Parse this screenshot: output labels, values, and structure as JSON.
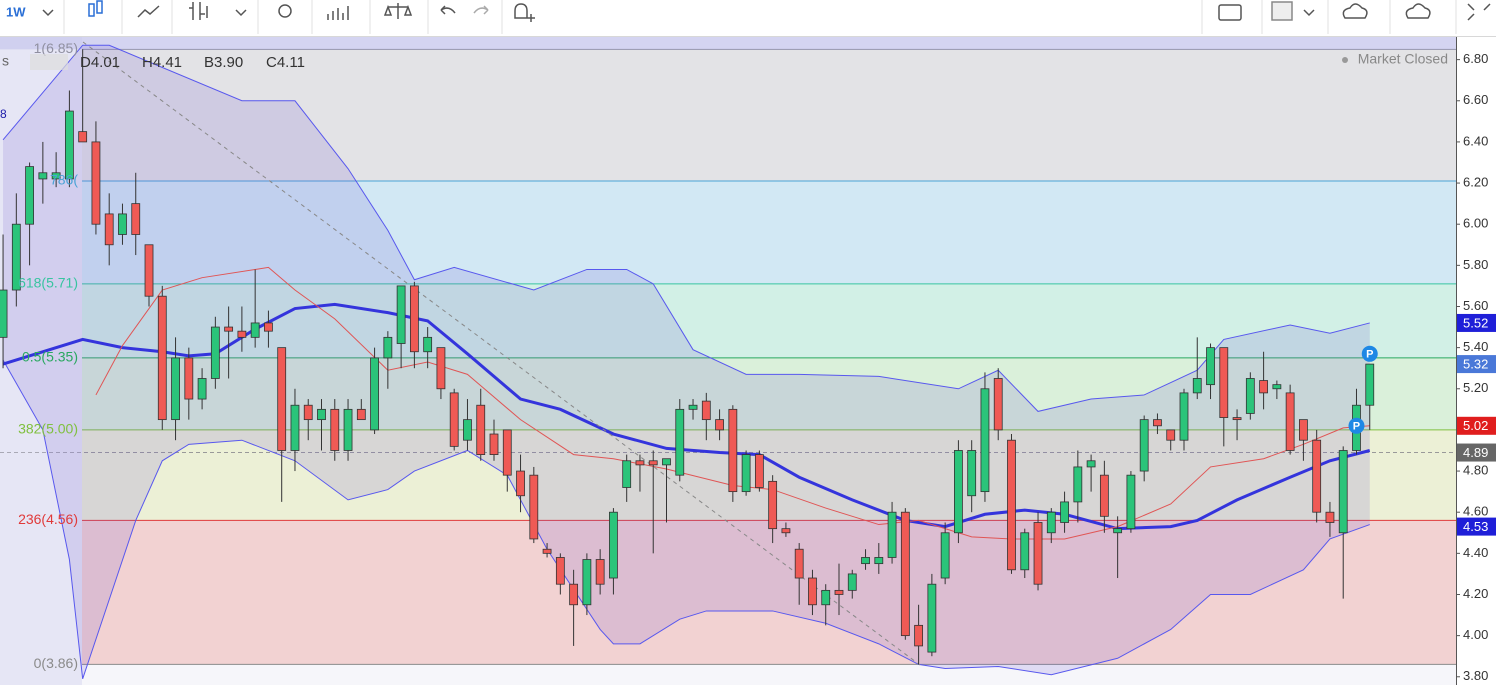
{
  "toolbar": {
    "interval": "1W"
  },
  "header": {
    "fragment_left": "s",
    "fragment_value": "8",
    "open": "D4.01",
    "high": "H4.41",
    "low": "B3.90",
    "close": "C4.11",
    "status": "Market Closed"
  },
  "chart_data": {
    "type": "candlestick",
    "ylim": [
      3.76,
      6.91
    ],
    "xlim": [
      -0.23,
      109.5
    ],
    "yticks": [
      {
        "value": 3.8,
        "label": "3.80"
      },
      {
        "value": 4,
        "label": "4.00"
      },
      {
        "value": 4.2,
        "label": "4.20"
      },
      {
        "value": 4.4,
        "label": "4.40"
      },
      {
        "value": 4.6,
        "label": "4.60"
      },
      {
        "value": 4.8,
        "label": "4.80"
      },
      {
        "value": 5,
        "label": "5.00"
      },
      {
        "value": 5.2,
        "label": "5.20"
      },
      {
        "value": 5.4,
        "label": "5.40"
      },
      {
        "value": 5.6,
        "label": "5.60"
      },
      {
        "value": 5.8,
        "label": "5.80"
      },
      {
        "value": 6,
        "label": "6.00"
      },
      {
        "value": 6.2,
        "label": "6.20"
      },
      {
        "value": 6.4,
        "label": "6.40"
      },
      {
        "value": 6.6,
        "label": "6.60"
      },
      {
        "value": 6.8,
        "label": "6.80"
      }
    ],
    "up_color": "#2bc47a",
    "down_color": "#ef5a55",
    "candles": [
      [
        5.45,
        5.95,
        5.3,
        5.68
      ],
      [
        5.68,
        6.15,
        5.6,
        6.0
      ],
      [
        6.0,
        6.3,
        5.8,
        6.28
      ],
      [
        6.22,
        6.4,
        6.1,
        6.25
      ],
      [
        6.22,
        6.35,
        6.18,
        6.25
      ],
      [
        6.22,
        6.65,
        6.18,
        6.55
      ],
      [
        6.45,
        6.85,
        6.4,
        6.4
      ],
      [
        6.4,
        6.5,
        5.95,
        6.0
      ],
      [
        6.05,
        6.15,
        5.8,
        5.9
      ],
      [
        5.95,
        6.1,
        5.9,
        6.05
      ],
      [
        6.1,
        6.25,
        5.85,
        5.95
      ],
      [
        5.9,
        5.9,
        5.6,
        5.65
      ],
      [
        5.65,
        5.7,
        5.0,
        5.05
      ],
      [
        5.05,
        5.45,
        4.95,
        5.35
      ],
      [
        5.35,
        5.4,
        5.05,
        5.15
      ],
      [
        5.15,
        5.3,
        5.1,
        5.25
      ],
      [
        5.25,
        5.55,
        5.2,
        5.5
      ],
      [
        5.5,
        5.6,
        5.25,
        5.48
      ],
      [
        5.48,
        5.6,
        5.38,
        5.45
      ],
      [
        5.45,
        5.78,
        5.4,
        5.52
      ],
      [
        5.52,
        5.58,
        5.4,
        5.48
      ],
      [
        5.4,
        5.4,
        4.65,
        4.9
      ],
      [
        4.9,
        5.2,
        4.8,
        5.12
      ],
      [
        5.12,
        5.15,
        4.95,
        5.05
      ],
      [
        5.05,
        5.15,
        4.9,
        5.1
      ],
      [
        5.1,
        5.15,
        4.85,
        4.9
      ],
      [
        4.9,
        5.15,
        4.85,
        5.1
      ],
      [
        5.1,
        5.15,
        5.05,
        5.05
      ],
      [
        5.0,
        5.4,
        4.98,
        5.35
      ],
      [
        5.35,
        5.48,
        5.2,
        5.45
      ],
      [
        5.42,
        5.7,
        5.3,
        5.7
      ],
      [
        5.7,
        5.72,
        5.3,
        5.38
      ],
      [
        5.38,
        5.5,
        5.3,
        5.45
      ],
      [
        5.4,
        5.4,
        5.15,
        5.2
      ],
      [
        5.18,
        5.2,
        4.9,
        4.92
      ],
      [
        4.95,
        5.15,
        4.9,
        5.05
      ],
      [
        5.12,
        5.2,
        4.85,
        4.88
      ],
      [
        4.98,
        5.05,
        4.85,
        4.88
      ],
      [
        5.0,
        5.0,
        4.7,
        4.78
      ],
      [
        4.8,
        4.88,
        4.6,
        4.68
      ],
      [
        4.78,
        4.82,
        4.45,
        4.47
      ],
      [
        4.42,
        4.45,
        4.38,
        4.4
      ],
      [
        4.38,
        4.4,
        4.2,
        4.25
      ],
      [
        4.25,
        4.32,
        3.95,
        4.15
      ],
      [
        4.15,
        4.4,
        4.1,
        4.37
      ],
      [
        4.37,
        4.42,
        4.2,
        4.25
      ],
      [
        4.28,
        4.62,
        4.2,
        4.6
      ],
      [
        4.72,
        4.88,
        4.65,
        4.85
      ],
      [
        4.85,
        4.88,
        4.7,
        4.83
      ],
      [
        4.85,
        4.9,
        4.4,
        4.83
      ],
      [
        4.83,
        4.85,
        4.55,
        4.86
      ],
      [
        4.78,
        5.15,
        4.75,
        5.1
      ],
      [
        5.1,
        5.15,
        5.05,
        5.12
      ],
      [
        5.14,
        5.18,
        4.95,
        5.05
      ],
      [
        5.05,
        5.1,
        4.95,
        5.0
      ],
      [
        5.1,
        5.12,
        4.65,
        4.7
      ],
      [
        4.7,
        4.9,
        4.68,
        4.88
      ],
      [
        4.88,
        4.9,
        4.7,
        4.72
      ],
      [
        4.75,
        4.78,
        4.45,
        4.52
      ],
      [
        4.52,
        4.55,
        4.48,
        4.5
      ],
      [
        4.42,
        4.45,
        4.15,
        4.28
      ],
      [
        4.28,
        4.32,
        4.1,
        4.15
      ],
      [
        4.15,
        4.25,
        4.05,
        4.22
      ],
      [
        4.22,
        4.35,
        4.1,
        4.2
      ],
      [
        4.22,
        4.32,
        4.18,
        4.3
      ],
      [
        4.35,
        4.42,
        4.32,
        4.38
      ],
      [
        4.35,
        4.45,
        4.3,
        4.38
      ],
      [
        4.38,
        4.65,
        4.35,
        4.6
      ],
      [
        4.6,
        4.62,
        3.98,
        4.0
      ],
      [
        4.05,
        4.15,
        3.86,
        3.95
      ],
      [
        3.92,
        4.3,
        3.9,
        4.25
      ],
      [
        4.28,
        4.55,
        4.25,
        4.5
      ],
      [
        4.5,
        4.95,
        4.45,
        4.9
      ],
      [
        4.68,
        4.95,
        4.6,
        4.9
      ],
      [
        4.7,
        5.28,
        4.65,
        5.2
      ],
      [
        5.25,
        5.3,
        4.95,
        5.0
      ],
      [
        4.95,
        4.98,
        4.3,
        4.32
      ],
      [
        4.32,
        4.52,
        4.28,
        4.5
      ],
      [
        4.55,
        4.6,
        4.22,
        4.25
      ],
      [
        4.5,
        4.62,
        4.45,
        4.6
      ],
      [
        4.55,
        4.7,
        4.5,
        4.65
      ],
      [
        4.65,
        4.9,
        4.55,
        4.82
      ],
      [
        4.82,
        4.88,
        4.7,
        4.85
      ],
      [
        4.78,
        4.85,
        4.5,
        4.58
      ],
      [
        4.5,
        4.58,
        4.28,
        4.52
      ],
      [
        4.52,
        4.8,
        4.5,
        4.78
      ],
      [
        4.8,
        5.07,
        4.75,
        5.05
      ],
      [
        5.05,
        5.08,
        4.98,
        5.02
      ],
      [
        5.0,
        5.0,
        4.9,
        4.95
      ],
      [
        4.95,
        5.2,
        4.9,
        5.18
      ],
      [
        5.18,
        5.45,
        5.15,
        5.25
      ],
      [
        5.22,
        5.42,
        5.15,
        5.4
      ],
      [
        5.4,
        5.4,
        4.92,
        5.06
      ],
      [
        5.06,
        5.1,
        4.95,
        5.05
      ],
      [
        5.08,
        5.28,
        5.05,
        5.25
      ],
      [
        5.24,
        5.38,
        5.1,
        5.18
      ],
      [
        5.2,
        5.24,
        5.15,
        5.22
      ],
      [
        5.18,
        5.22,
        4.88,
        4.9
      ],
      [
        5.05,
        5.05,
        4.85,
        4.95
      ],
      [
        4.95,
        5.0,
        4.55,
        4.6
      ],
      [
        4.6,
        4.65,
        4.48,
        4.55
      ],
      [
        4.5,
        4.92,
        4.18,
        4.9
      ],
      [
        4.9,
        5.2,
        4.88,
        5.12
      ],
      [
        5.12,
        5.32,
        5.0,
        5.32
      ]
    ],
    "bands": [
      {
        "color": "#5858ee",
        "width": 1,
        "x": [
          0,
          6,
          8,
          18,
          22,
          26,
          29,
          31,
          34,
          40,
          44,
          47,
          49,
          52,
          56,
          60,
          66,
          72,
          75,
          78,
          82,
          86,
          90,
          92,
          97,
          100,
          103
        ],
        "values": [
          6.41,
          6.87,
          6.87,
          6.6,
          6.6,
          6.27,
          5.97,
          5.73,
          5.79,
          5.68,
          5.78,
          5.78,
          5.71,
          5.39,
          5.27,
          5.27,
          5.26,
          5.2,
          5.29,
          5.09,
          5.15,
          5.17,
          5.29,
          5.44,
          5.51,
          5.47,
          5.52
        ]
      },
      {
        "color": "#5858ee",
        "width": 1,
        "x": [
          0,
          3,
          5,
          6,
          10,
          12,
          14,
          18,
          22,
          26,
          29,
          31,
          35,
          38,
          41,
          45,
          46,
          48,
          51,
          53,
          58,
          62,
          66,
          69,
          71,
          75,
          79,
          84,
          88,
          91,
          94,
          98,
          100,
          103
        ],
        "values": [
          5.34,
          5.0,
          4.37,
          3.79,
          4.56,
          4.85,
          4.93,
          4.95,
          4.85,
          4.66,
          4.71,
          4.8,
          4.9,
          4.78,
          4.42,
          4.03,
          3.96,
          3.96,
          4.08,
          4.12,
          4.12,
          4.06,
          3.96,
          3.86,
          3.84,
          3.85,
          3.81,
          3.89,
          4.03,
          4.2,
          4.2,
          4.32,
          4.47,
          4.54
        ]
      }
    ],
    "band_fill": "rgba(110,90,210,0.17)",
    "lines": [
      {
        "color": "#3434dc",
        "width": 3,
        "x": [
          0,
          6,
          9,
          12,
          14,
          16,
          19,
          22,
          25,
          29,
          32,
          35,
          39,
          42,
          46,
          50,
          54,
          57,
          60,
          64,
          68,
          71,
          74,
          77,
          80,
          84,
          88,
          90,
          93,
          97,
          100,
          103
        ],
        "values": [
          5.32,
          5.44,
          5.4,
          5.38,
          5.36,
          5.37,
          5.49,
          5.59,
          5.61,
          5.57,
          5.53,
          5.37,
          5.15,
          5.1,
          4.98,
          4.91,
          4.89,
          4.88,
          4.77,
          4.66,
          4.56,
          4.53,
          4.59,
          4.61,
          4.59,
          4.52,
          4.53,
          4.56,
          4.66,
          4.77,
          4.85,
          4.9
        ]
      },
      {
        "color": "#e05555",
        "width": 1,
        "x": [
          7,
          9,
          12,
          15,
          19,
          20,
          22,
          25,
          29,
          32,
          35,
          39,
          43,
          46,
          50,
          55,
          58,
          62,
          66,
          69,
          73,
          76,
          80,
          84,
          88,
          91,
          95,
          98,
          101,
          103
        ],
        "values": [
          5.17,
          5.41,
          5.68,
          5.74,
          5.78,
          5.79,
          5.68,
          5.54,
          5.29,
          5.33,
          5.27,
          5.05,
          4.88,
          4.86,
          4.81,
          4.73,
          4.71,
          4.62,
          4.54,
          4.56,
          4.48,
          4.47,
          4.47,
          4.53,
          4.64,
          4.82,
          4.86,
          4.93,
          5.01,
          5.02
        ]
      }
    ],
    "fib_levels": [
      {
        "label": "1(6.85)",
        "value": 6.85,
        "color": "#9090a0",
        "fill": "#e3e3e6"
      },
      {
        "label": "786(",
        "value": 6.21,
        "color": "#4aa3d6",
        "fill": "#d2e8f4"
      },
      {
        "label": "618(5.71)",
        "value": 5.71,
        "color": "#38c4a0",
        "fill": "#d2f0e6"
      },
      {
        "label": "0.5(5.35)",
        "value": 5.35,
        "color": "#2aa860",
        "fill": "#daf0da"
      },
      {
        "label": "382(5.00)",
        "value": 5.0,
        "color": "#80c040",
        "fill": "#ecf0d6"
      },
      {
        "label": "236(4.56)",
        "value": 4.56,
        "color": "#e03a3a",
        "fill": "#f2d2d2"
      },
      {
        "label": "0(3.86)",
        "value": 3.86,
        "color": "#8a8a8a"
      }
    ],
    "markers": [
      {
        "label": "P",
        "x": 102,
        "value": 5.02
      },
      {
        "label": "P",
        "x": 103,
        "value": 5.37
      }
    ],
    "price_labels": [
      {
        "value": 5.52,
        "color": "#1f1fd8"
      },
      {
        "value": 5.32,
        "color": "#4a78d8"
      },
      {
        "value": 5.02,
        "color": "#e01e1e"
      },
      {
        "value": 4.89,
        "color": "#666666"
      },
      {
        "value": 4.53,
        "color": "#1f1fd8"
      }
    ]
  }
}
